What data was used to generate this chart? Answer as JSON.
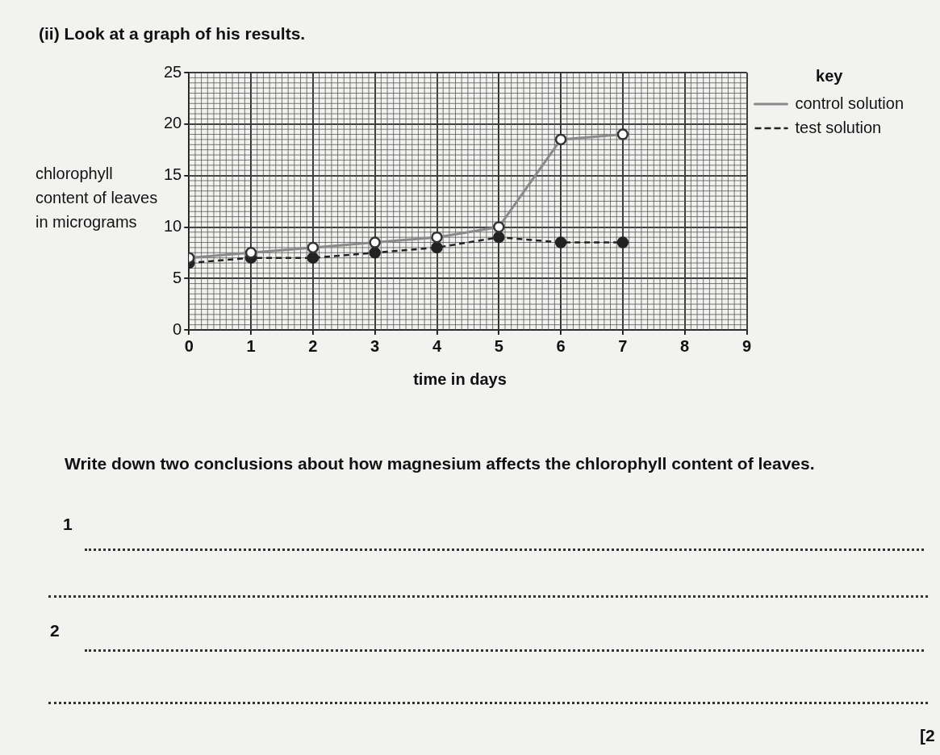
{
  "chart_data": {
    "type": "line",
    "title": "(ii) Look at a graph of his results.",
    "xlabel": "time in days",
    "ylabel": "chlorophyll content of leaves in micrograms",
    "legend_title": "key",
    "x": [
      0,
      1,
      2,
      3,
      4,
      5,
      6,
      7
    ],
    "series": [
      {
        "name": "control solution",
        "color": "#8a8a8a",
        "marker": "circle",
        "line_style": "solid",
        "values": [
          7,
          7.5,
          8,
          8.5,
          9,
          10,
          18.5,
          19
        ]
      },
      {
        "name": "test solution",
        "color": "#222222",
        "marker": "circle",
        "line_style": "dashed",
        "values": [
          6.5,
          7,
          7,
          7.5,
          8,
          9,
          8.5,
          8.5
        ]
      }
    ],
    "xlim": [
      0,
      9
    ],
    "xticks": [
      0,
      1,
      2,
      3,
      4,
      5,
      6,
      7,
      8,
      9
    ],
    "ylim": [
      0,
      25
    ],
    "yticks": [
      0,
      5,
      10,
      15,
      20,
      25
    ],
    "grid": true,
    "legend": "right",
    "annotations": [
      "Write down two conclusions about how magnesium affects the chlorophyll content of leaves.",
      "1",
      "2",
      "[2"
    ]
  }
}
